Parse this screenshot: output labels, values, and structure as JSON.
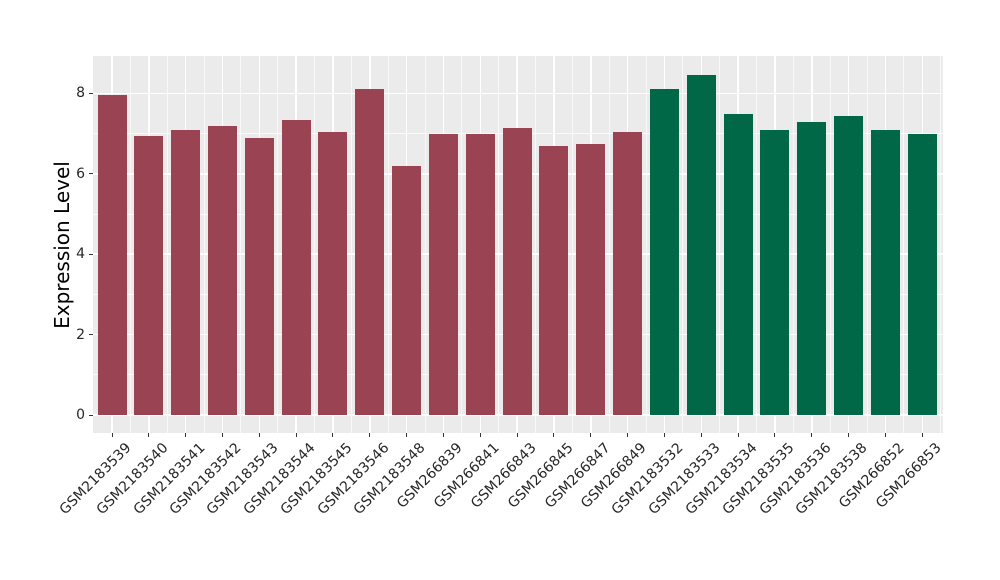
{
  "figure": {
    "background": "#ffffff",
    "panel_background": "#ebebeb",
    "grid_major_color": "#ffffff",
    "grid_minor_color": "#ffffff",
    "tick_mark_color": "#333333",
    "axis_text_color": "#262626",
    "axis_title_color": "#000000"
  },
  "chart_data": {
    "type": "bar",
    "title": "",
    "xlabel": "",
    "ylabel": "Expression Level",
    "ylim": [
      0,
      8.9
    ],
    "yticks": [
      0,
      2,
      4,
      6,
      8
    ],
    "yticks_minor": [
      1,
      3,
      5,
      7
    ],
    "grid": true,
    "legend_position": "none",
    "x_label_rotation_deg": 45,
    "categories": [
      "GSM2183539",
      "GSM2183540",
      "GSM2183541",
      "GSM2183542",
      "GSM2183543",
      "GSM2183544",
      "GSM2183545",
      "GSM2183546",
      "GSM2183548",
      "GSM266839",
      "GSM266841",
      "GSM266843",
      "GSM266845",
      "GSM266847",
      "GSM266849",
      "GSM2183532",
      "GSM2183533",
      "GSM2183534",
      "GSM2183535",
      "GSM2183536",
      "GSM2183538",
      "GSM266852",
      "GSM266853"
    ],
    "values": [
      7.95,
      6.95,
      7.1,
      7.2,
      6.9,
      7.35,
      7.05,
      8.1,
      6.2,
      7.0,
      7.0,
      7.15,
      6.7,
      6.75,
      7.05,
      8.1,
      8.45,
      7.5,
      7.1,
      7.3,
      7.45,
      7.1,
      7.0
    ],
    "bar_colors": [
      "#9a4352",
      "#9a4352",
      "#9a4352",
      "#9a4352",
      "#9a4352",
      "#9a4352",
      "#9a4352",
      "#9a4352",
      "#9a4352",
      "#9a4352",
      "#9a4352",
      "#9a4352",
      "#9a4352",
      "#9a4352",
      "#9a4352",
      "#006747",
      "#006747",
      "#006747",
      "#006747",
      "#006747",
      "#006747",
      "#006747",
      "#006747"
    ],
    "group_colors": {
      "group_1": "#9a4352",
      "group_2": "#006747"
    }
  }
}
